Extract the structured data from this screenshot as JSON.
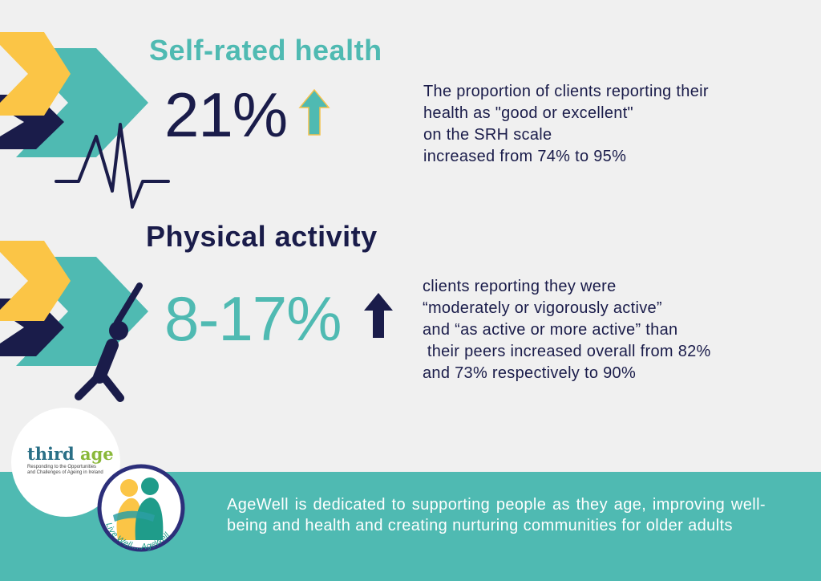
{
  "colors": {
    "teal": "#4fbab2",
    "navy": "#1a1c4a",
    "yellow": "#fbc546",
    "background": "#f0f0f0",
    "white": "#ffffff"
  },
  "section1": {
    "heading": "Self-rated health",
    "stat": "21%",
    "arrow_icon": "arrow-up-icon",
    "lines": [
      "The proportion of clients reporting their",
      "health as \"good or excellent\"",
      "on the SRH scale",
      "increased from 74% to 95%"
    ]
  },
  "section2": {
    "heading": "Physical activity",
    "stat": "8-17%",
    "arrow_icon": "arrow-up-icon",
    "lines": [
      "clients reporting they were",
      "“moderately or vigorously active”",
      "and “as active or more active” than",
      " their peers increased overall from 82%",
      "and 73% respectively to 90%"
    ]
  },
  "footer": {
    "text": "AgeWell is dedicated to supporting people as they age, improving well-being and health and creating nurturing communities for older adults"
  },
  "logos": {
    "third_age": {
      "word_main": "third ",
      "word_accent": "age",
      "tagline": [
        "Responding to the Opportunities",
        "and Challenges of Ageing in Ireland"
      ]
    },
    "agewell": {
      "arc_text": "Live Well....AgeWell"
    }
  }
}
